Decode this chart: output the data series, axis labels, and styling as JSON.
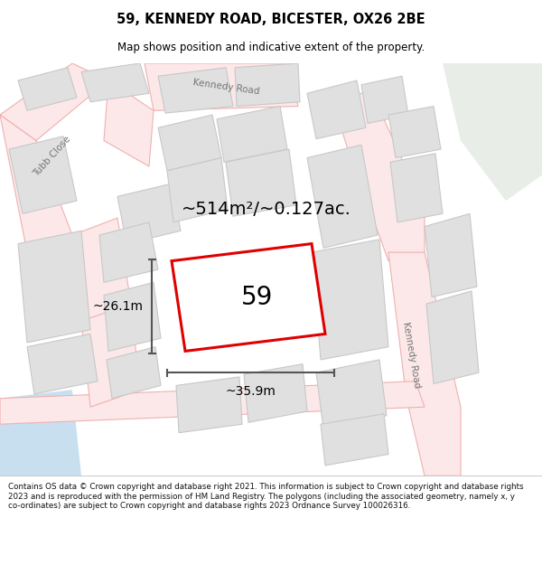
{
  "title": "59, KENNEDY ROAD, BICESTER, OX26 2BE",
  "subtitle": "Map shows position and indicative extent of the property.",
  "footer": "Contains OS data © Crown copyright and database right 2021. This information is subject to Crown copyright and database rights 2023 and is reproduced with the permission of HM Land Registry. The polygons (including the associated geometry, namely x, y co-ordinates) are subject to Crown copyright and database rights 2023 Ordnance Survey 100026316.",
  "map_bg": "#f5f5f5",
  "road_fill": "#fce8e8",
  "road_edge": "#f0b0b0",
  "building_fill": "#e0e0e0",
  "building_edge": "#c8c8c8",
  "highlight_fill": "#ffffff",
  "highlight_edge": "#e00000",
  "highlight_lw": 2.2,
  "water_color": "#c8dff0",
  "green_color": "#e8ede8",
  "street_color": "#d0b0b0",
  "label_59": "59",
  "area_label": "~514m²/~0.127ac.",
  "dim_w": "~35.9m",
  "dim_h": "~26.1m",
  "street_label_tubb": "Tubb Close",
  "street_label_kennedy_top": "Kennedy Road",
  "street_label_kennedy_right": "Kennedy Road",
  "dim_color": "#555555",
  "label_color": "#777777"
}
